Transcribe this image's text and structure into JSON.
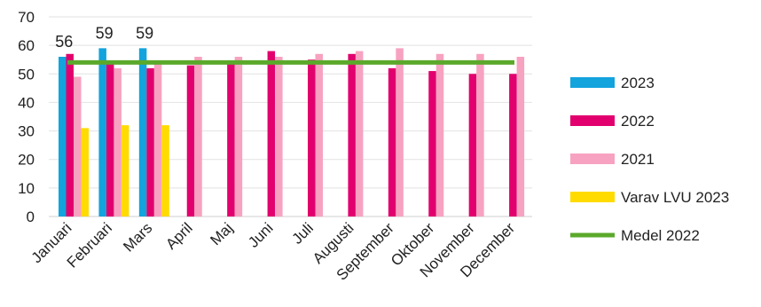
{
  "chart_data": {
    "type": "bar",
    "title": "",
    "xlabel": "",
    "ylabel": "",
    "ylim": [
      0,
      70
    ],
    "yticks": [
      0,
      10,
      20,
      30,
      40,
      50,
      60,
      70
    ],
    "grid": "horizontal",
    "legend_position": "right",
    "categories": [
      "Januari",
      "Februari",
      "Mars",
      "April",
      "Maj",
      "Juni",
      "Juli",
      "Augusti",
      "September",
      "Oktober",
      "November",
      "December"
    ],
    "series": [
      {
        "name": "2023",
        "color": "#13a3dd",
        "values": [
          56,
          59,
          59,
          null,
          null,
          null,
          null,
          null,
          null,
          null,
          null,
          null
        ]
      },
      {
        "name": "2022",
        "color": "#e1006e",
        "values": [
          57,
          54,
          52,
          53,
          54,
          58,
          55,
          57,
          52,
          51,
          50,
          50
        ]
      },
      {
        "name": "2021",
        "color": "#f7a2c0",
        "values": [
          49,
          52,
          54,
          56,
          56,
          56,
          57,
          58,
          59,
          57,
          57,
          56
        ]
      },
      {
        "name": "Varav LVU 2023",
        "color": "#ffdb00",
        "values": [
          31,
          32,
          32,
          null,
          null,
          null,
          null,
          null,
          null,
          null,
          null,
          null
        ]
      }
    ],
    "reference_line": {
      "name": "Medel 2022",
      "color": "#5ba92b",
      "value": 54
    },
    "data_labels": [
      {
        "category": "Januari",
        "series": "2023",
        "text": "56"
      },
      {
        "category": "Februari",
        "series": "2023",
        "text": "59"
      },
      {
        "category": "Mars",
        "series": "2023",
        "text": "59"
      }
    ]
  }
}
